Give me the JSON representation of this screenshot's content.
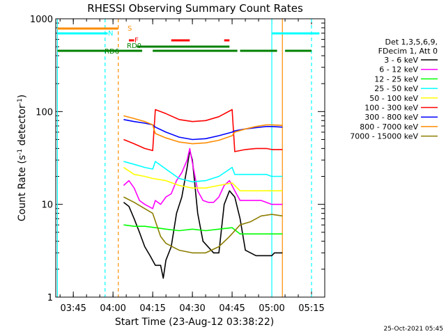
{
  "chart_data": {
    "type": "line",
    "title": "RHESSI Observing Summary Count Rates",
    "xlabel": "Start Time (23-Aug-12 03:38:22)",
    "ylabel_main": "Count Rate (s",
    "ylabel_sup1": "-1",
    "ylabel_mid": " detector",
    "ylabel_sup2": "-1",
    "ylabel_end": ")",
    "y_scale": "log",
    "xlim": [
      "03:38:22",
      "05:20:00"
    ],
    "ylim": [
      1,
      1000
    ],
    "x_ticks": [
      "03:45",
      "04:00",
      "04:15",
      "04:30",
      "04:45",
      "05:00",
      "05:15"
    ],
    "y_ticks": [
      "1",
      "10",
      "100",
      "1000"
    ],
    "legend_header": [
      "Det 1,3,5,6,9,",
      "FDecim 1, Att 0"
    ],
    "legend_position": "right",
    "timestamp": "25-Oct-2021 05:45",
    "series": [
      {
        "name": "3 - 6 keV",
        "color": "#000000",
        "points": [
          [
            "04:04",
            10.5
          ],
          [
            "04:06",
            9.5
          ],
          [
            "04:08",
            7
          ],
          [
            "04:10",
            5
          ],
          [
            "04:12",
            3.5
          ],
          [
            "04:14",
            2.8
          ],
          [
            "04:16",
            2.2
          ],
          [
            "04:18",
            2.2
          ],
          [
            "04:19",
            1.6
          ],
          [
            "04:20",
            2.5
          ],
          [
            "04:22",
            3.5
          ],
          [
            "04:24",
            8
          ],
          [
            "04:26",
            12
          ],
          [
            "04:28",
            25
          ],
          [
            "04:29",
            38
          ],
          [
            "04:30",
            30
          ],
          [
            "04:32",
            8
          ],
          [
            "04:34",
            4
          ],
          [
            "04:38",
            3
          ],
          [
            "04:40",
            3
          ],
          [
            "04:42",
            10
          ],
          [
            "04:44",
            14
          ],
          [
            "04:46",
            12
          ],
          [
            "04:48",
            7
          ],
          [
            "04:50",
            3.2
          ],
          [
            "04:54",
            2.8
          ],
          [
            "04:58",
            2.8
          ],
          [
            "05:00",
            2.8
          ],
          [
            "05:01",
            3
          ],
          [
            "05:04",
            3
          ]
        ]
      },
      {
        "name": "6 - 12 keV",
        "color": "#ff00ff",
        "points": [
          [
            "04:04",
            16
          ],
          [
            "04:06",
            18
          ],
          [
            "04:08",
            15
          ],
          [
            "04:10",
            11
          ],
          [
            "04:12",
            10
          ],
          [
            "04:15",
            9
          ],
          [
            "04:16",
            11
          ],
          [
            "04:18",
            10
          ],
          [
            "04:20",
            12
          ],
          [
            "04:22",
            13
          ],
          [
            "04:24",
            18
          ],
          [
            "04:26",
            22
          ],
          [
            "04:28",
            30
          ],
          [
            "04:29",
            40
          ],
          [
            "04:30",
            28
          ],
          [
            "04:32",
            14
          ],
          [
            "04:34",
            11
          ],
          [
            "04:36",
            10.5
          ],
          [
            "04:38",
            10.5
          ],
          [
            "04:40",
            12
          ],
          [
            "04:42",
            16
          ],
          [
            "04:44",
            18
          ],
          [
            "04:46",
            14
          ],
          [
            "04:48",
            11
          ],
          [
            "04:52",
            11
          ],
          [
            "04:56",
            11
          ],
          [
            "05:00",
            10
          ],
          [
            "05:04",
            10
          ]
        ]
      },
      {
        "name": "12 - 25 keV",
        "color": "#00ff00",
        "points": [
          [
            "04:04",
            6
          ],
          [
            "04:08",
            5.8
          ],
          [
            "04:12",
            5.8
          ],
          [
            "04:16",
            5.6
          ],
          [
            "04:20",
            5.4
          ],
          [
            "04:25",
            5.2
          ],
          [
            "04:30",
            5.4
          ],
          [
            "04:35",
            5.2
          ],
          [
            "04:40",
            5.4
          ],
          [
            "04:45",
            5.6
          ],
          [
            "04:48",
            4.8
          ],
          [
            "04:52",
            4.8
          ],
          [
            "04:56",
            4.8
          ],
          [
            "05:00",
            4.8
          ],
          [
            "05:04",
            4.8
          ]
        ]
      },
      {
        "name": "25 - 50 keV",
        "color": "#00ffff",
        "points": [
          [
            "04:04",
            29
          ],
          [
            "04:08",
            27
          ],
          [
            "04:12",
            25
          ],
          [
            "04:15",
            24
          ],
          [
            "04:16",
            29
          ],
          [
            "04:20",
            24
          ],
          [
            "04:25",
            19
          ],
          [
            "04:30",
            17.5
          ],
          [
            "04:35",
            18
          ],
          [
            "04:40",
            20
          ],
          [
            "04:45",
            25
          ],
          [
            "04:46",
            21
          ],
          [
            "04:50",
            21
          ],
          [
            "04:54",
            21
          ],
          [
            "04:58",
            21
          ],
          [
            "05:00",
            20
          ],
          [
            "05:04",
            20
          ]
        ]
      },
      {
        "name": "50 - 100 keV",
        "color": "#ffff00",
        "points": [
          [
            "04:04",
            25
          ],
          [
            "04:08",
            21
          ],
          [
            "04:12",
            20
          ],
          [
            "04:15",
            19
          ],
          [
            "04:20",
            18
          ],
          [
            "04:25",
            16
          ],
          [
            "04:30",
            15
          ],
          [
            "04:35",
            15
          ],
          [
            "04:40",
            16
          ],
          [
            "04:45",
            17
          ],
          [
            "04:48",
            14
          ],
          [
            "04:52",
            14
          ],
          [
            "04:56",
            14
          ],
          [
            "05:00",
            14
          ],
          [
            "05:04",
            14
          ]
        ]
      },
      {
        "name": "100 - 300 keV",
        "color": "#ff0000",
        "points": [
          [
            "04:04",
            50
          ],
          [
            "04:08",
            45
          ],
          [
            "04:12",
            40
          ],
          [
            "04:15",
            38
          ],
          [
            "04:16",
            105
          ],
          [
            "04:20",
            95
          ],
          [
            "04:25",
            82
          ],
          [
            "04:30",
            78
          ],
          [
            "04:35",
            80
          ],
          [
            "04:40",
            88
          ],
          [
            "04:45",
            105
          ],
          [
            "04:46",
            37
          ],
          [
            "04:50",
            39
          ],
          [
            "04:54",
            40
          ],
          [
            "04:58",
            40
          ],
          [
            "05:00",
            39
          ],
          [
            "05:04",
            39
          ]
        ]
      },
      {
        "name": "300 - 800 keV",
        "color": "#0000ff",
        "points": [
          [
            "04:04",
            82
          ],
          [
            "04:08",
            78
          ],
          [
            "04:12",
            75
          ],
          [
            "04:15",
            72
          ],
          [
            "04:16",
            68
          ],
          [
            "04:20",
            60
          ],
          [
            "04:25",
            53
          ],
          [
            "04:30",
            50
          ],
          [
            "04:35",
            51
          ],
          [
            "04:40",
            55
          ],
          [
            "04:45",
            60
          ],
          [
            "04:46",
            62
          ],
          [
            "04:50",
            65
          ],
          [
            "04:54",
            67
          ],
          [
            "04:58",
            69
          ],
          [
            "05:00",
            69
          ],
          [
            "05:04",
            68
          ]
        ]
      },
      {
        "name": "800 - 7000 keV",
        "color": "#ff8c00",
        "points": [
          [
            "04:04",
            90
          ],
          [
            "04:08",
            84
          ],
          [
            "04:12",
            78
          ],
          [
            "04:15",
            72
          ],
          [
            "04:16",
            58
          ],
          [
            "04:20",
            52
          ],
          [
            "04:25",
            47
          ],
          [
            "04:30",
            45
          ],
          [
            "04:35",
            46
          ],
          [
            "04:40",
            49
          ],
          [
            "04:45",
            55
          ],
          [
            "04:46",
            60
          ],
          [
            "04:50",
            65
          ],
          [
            "04:54",
            69
          ],
          [
            "04:58",
            72
          ],
          [
            "05:00",
            72
          ],
          [
            "05:04",
            71
          ]
        ]
      },
      {
        "name": "7000 - 15000 keV",
        "color": "#8b7d00",
        "points": [
          [
            "04:04",
            12
          ],
          [
            "04:08",
            10.5
          ],
          [
            "04:12",
            9
          ],
          [
            "04:15",
            8
          ],
          [
            "04:18",
            4.5
          ],
          [
            "04:20",
            3.8
          ],
          [
            "04:25",
            3.2
          ],
          [
            "04:30",
            3
          ],
          [
            "04:35",
            3
          ],
          [
            "04:40",
            3.5
          ],
          [
            "04:44",
            4.5
          ],
          [
            "04:48",
            6
          ],
          [
            "04:52",
            6.5
          ],
          [
            "04:56",
            7.5
          ],
          [
            "05:00",
            7.8
          ],
          [
            "05:04",
            7.5
          ]
        ]
      }
    ],
    "flag_bars": [
      {
        "label": "S",
        "color": "#ff8c00",
        "segments": [
          [
            "03:39",
            "04:02"
          ]
        ]
      },
      {
        "label": "N",
        "color": "#00ffff",
        "segments": [
          [
            "03:39",
            "03:58"
          ],
          [
            "05:00",
            "05:18"
          ]
        ]
      },
      {
        "label": "F",
        "color": "#ff0000",
        "segments": [
          [
            "04:06",
            "04:08"
          ],
          [
            "04:22",
            "04:29"
          ],
          [
            "04:42",
            "04:44"
          ]
        ]
      },
      {
        "label": "RD0",
        "color": "#008000",
        "segments": [
          [
            "04:09",
            "04:44"
          ]
        ]
      },
      {
        "label": "RD6",
        "color": "#008000",
        "segments": [
          [
            "03:39",
            "04:11"
          ],
          [
            "04:15",
            "04:47"
          ],
          [
            "04:48",
            "05:02"
          ],
          [
            "05:05",
            "05:15"
          ]
        ]
      }
    ],
    "vertical_markers": [
      {
        "time": "03:39",
        "color": "#00ffff",
        "style": "solid"
      },
      {
        "time": "03:57",
        "color": "#00ffff",
        "style": "dashed"
      },
      {
        "time": "04:02",
        "color": "#ff8c00",
        "style": "dashed"
      },
      {
        "time": "05:00",
        "color": "#00ffff",
        "style": "solid"
      },
      {
        "time": "05:04",
        "color": "#ff8c00",
        "style": "solid"
      },
      {
        "time": "05:15",
        "color": "#00ffff",
        "style": "dashed"
      }
    ]
  }
}
